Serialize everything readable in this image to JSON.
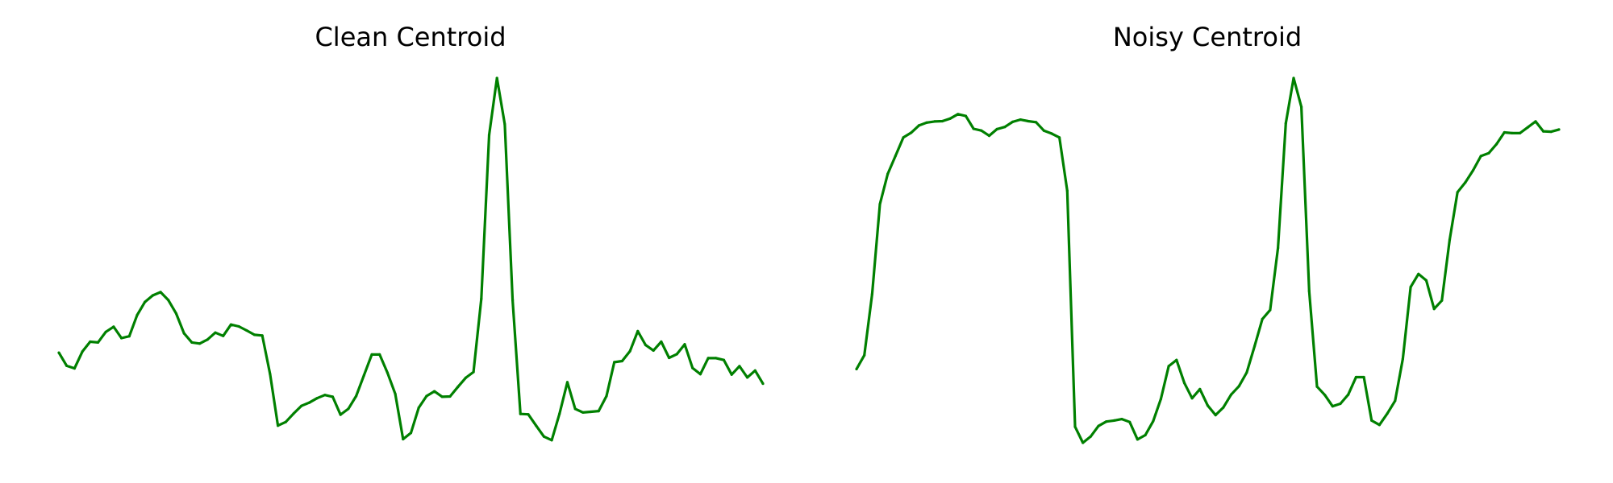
{
  "line_color": "#008000",
  "chart_data": [
    {
      "type": "line",
      "title": "Clean Centroid",
      "xlabel": "",
      "ylabel": "",
      "grid": false,
      "axes_visible": false,
      "ylim": [
        0,
        1
      ],
      "values": [
        0.247,
        0.211,
        0.204,
        0.25,
        0.277,
        0.275,
        0.304,
        0.318,
        0.287,
        0.292,
        0.35,
        0.386,
        0.404,
        0.413,
        0.391,
        0.354,
        0.3,
        0.275,
        0.272,
        0.283,
        0.302,
        0.293,
        0.324,
        0.319,
        0.308,
        0.296,
        0.294,
        0.188,
        0.047,
        0.057,
        0.08,
        0.101,
        0.11,
        0.122,
        0.131,
        0.126,
        0.077,
        0.093,
        0.128,
        0.185,
        0.242,
        0.242,
        0.192,
        0.134,
        0.01,
        0.027,
        0.096,
        0.128,
        0.141,
        0.126,
        0.127,
        0.153,
        0.178,
        0.194,
        0.395,
        0.844,
        1.0,
        0.873,
        0.391,
        0.079,
        0.078,
        0.047,
        0.017,
        0.007,
        0.08,
        0.166,
        0.093,
        0.083,
        0.085,
        0.087,
        0.128,
        0.221,
        0.224,
        0.251,
        0.306,
        0.268,
        0.253,
        0.277,
        0.233,
        0.243,
        0.27,
        0.205,
        0.188,
        0.232,
        0.232,
        0.227,
        0.187,
        0.21,
        0.179,
        0.198,
        0.162
      ]
    },
    {
      "type": "line",
      "title": "Noisy Centroid",
      "xlabel": "",
      "ylabel": "",
      "grid": false,
      "axes_visible": false,
      "ylim": [
        0,
        1
      ],
      "values": [
        0.202,
        0.24,
        0.408,
        0.654,
        0.737,
        0.787,
        0.837,
        0.85,
        0.87,
        0.878,
        0.881,
        0.882,
        0.889,
        0.901,
        0.896,
        0.861,
        0.856,
        0.842,
        0.86,
        0.866,
        0.88,
        0.886,
        0.882,
        0.879,
        0.856,
        0.848,
        0.837,
        0.691,
        0.044,
        0.0,
        0.017,
        0.046,
        0.058,
        0.061,
        0.065,
        0.057,
        0.009,
        0.021,
        0.059,
        0.12,
        0.21,
        0.227,
        0.164,
        0.122,
        0.147,
        0.102,
        0.076,
        0.097,
        0.132,
        0.155,
        0.193,
        0.265,
        0.339,
        0.364,
        0.534,
        0.876,
        1.0,
        0.921,
        0.416,
        0.154,
        0.131,
        0.1,
        0.107,
        0.132,
        0.18,
        0.18,
        0.061,
        0.049,
        0.08,
        0.115,
        0.23,
        0.427,
        0.463,
        0.445,
        0.367,
        0.39,
        0.557,
        0.687,
        0.714,
        0.747,
        0.786,
        0.794,
        0.819,
        0.851,
        0.849,
        0.849,
        0.865,
        0.881,
        0.854,
        0.853,
        0.859
      ]
    }
  ]
}
